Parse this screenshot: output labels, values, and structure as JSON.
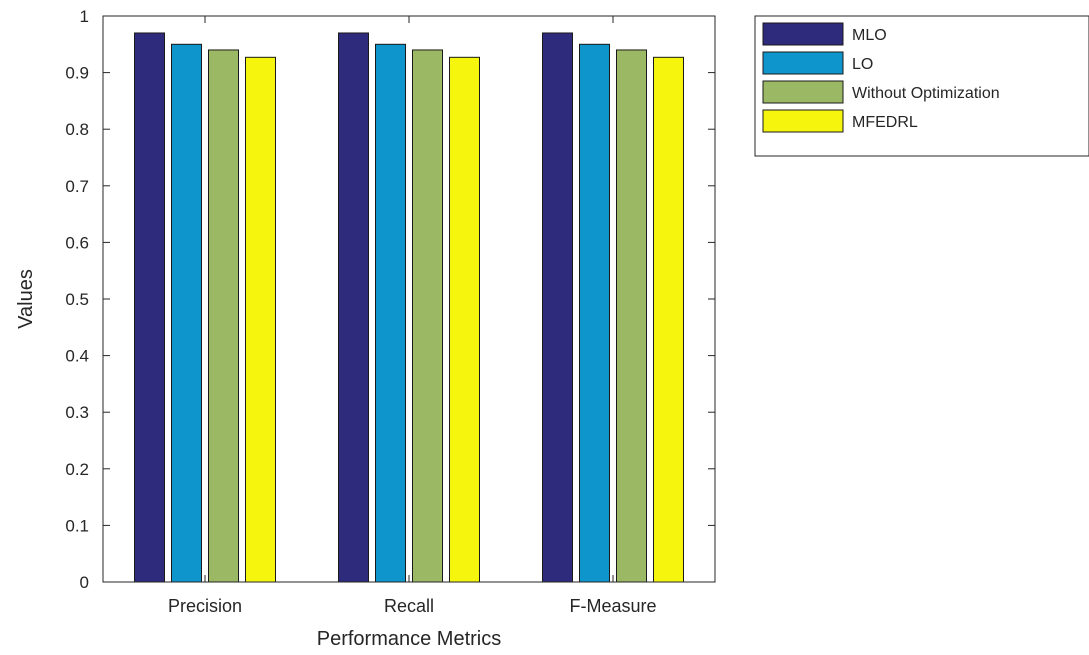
{
  "chart_data": {
    "type": "bar",
    "xlabel": "Performance Metrics",
    "ylabel": "Values",
    "categories": [
      "Precision",
      "Recall",
      "F-Measure"
    ],
    "ylim": [
      0,
      1
    ],
    "yticks": [
      0,
      0.1,
      0.2,
      0.3,
      0.4,
      0.5,
      0.6,
      0.7,
      0.8,
      0.9,
      1
    ],
    "ytick_labels": [
      "0",
      "0.1",
      "0.2",
      "0.3",
      "0.4",
      "0.5",
      "0.6",
      "0.7",
      "0.8",
      "0.9",
      "1"
    ],
    "grid": false,
    "legend_position": "outside-top-right",
    "series": [
      {
        "name": "MLO",
        "color": "#2e2a7c",
        "values": [
          0.97,
          0.97,
          0.97
        ]
      },
      {
        "name": "LO",
        "color": "#0e96cc",
        "values": [
          0.95,
          0.95,
          0.95
        ]
      },
      {
        "name": "Without Optimization",
        "color": "#9bb864",
        "values": [
          0.94,
          0.94,
          0.94
        ]
      },
      {
        "name": "MFEDRL",
        "color": "#f5f50e",
        "values": [
          0.927,
          0.927,
          0.927
        ]
      }
    ]
  }
}
